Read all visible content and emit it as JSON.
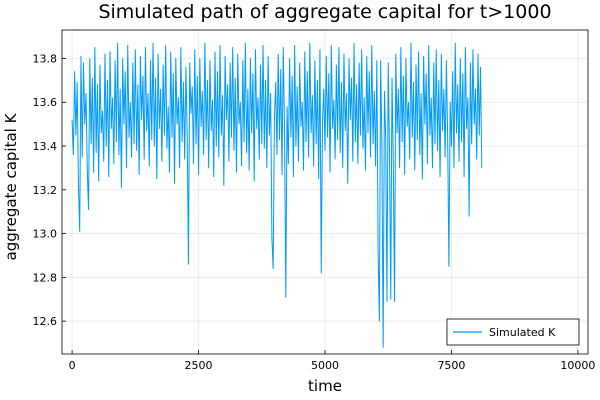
{
  "chart_data": {
    "type": "line",
    "title": "Simulated path of aggregate capital for t>1000",
    "xlabel": "time",
    "ylabel": "aggregate capital K",
    "xlim": [
      -200,
      10200
    ],
    "ylim": [
      12.45,
      13.93
    ],
    "x_ticks": [
      0,
      2500,
      5000,
      7500,
      10000
    ],
    "y_ticks": [
      12.6,
      12.8,
      13.0,
      13.2,
      13.4,
      13.6,
      13.8
    ],
    "grid": true,
    "legend_position": "bottom-right",
    "series": [
      {
        "name": "Simulated K",
        "color": "#009af9",
        "x_start": 0,
        "x_step": 25,
        "values": [
          13.52,
          13.36,
          13.74,
          13.45,
          13.69,
          13.22,
          13.01,
          13.81,
          13.35,
          13.78,
          13.5,
          13.64,
          13.29,
          13.11,
          13.8,
          13.41,
          13.71,
          13.28,
          13.85,
          13.37,
          13.68,
          13.24,
          13.77,
          13.46,
          13.56,
          13.33,
          13.82,
          13.4,
          13.7,
          13.26,
          13.83,
          13.48,
          13.62,
          13.32,
          13.79,
          13.42,
          13.87,
          13.36,
          13.66,
          13.21,
          13.8,
          13.5,
          13.74,
          13.3,
          13.86,
          13.44,
          13.6,
          13.35,
          13.78,
          13.41,
          13.84,
          13.38,
          13.68,
          13.27,
          13.81,
          13.52,
          13.72,
          13.34,
          13.85,
          13.47,
          13.64,
          13.31,
          13.79,
          13.43,
          13.87,
          13.4,
          13.71,
          13.25,
          13.82,
          13.48,
          13.66,
          13.33,
          13.77,
          13.45,
          13.86,
          13.39,
          13.58,
          13.28,
          13.83,
          13.44,
          13.73,
          13.23,
          13.8,
          13.5,
          13.62,
          13.3,
          13.85,
          13.42,
          13.69,
          13.34,
          13.76,
          13.46,
          12.86,
          13.78,
          13.55,
          13.67,
          13.32,
          13.84,
          13.41,
          13.72,
          13.27,
          13.8,
          13.49,
          13.65,
          13.36,
          13.87,
          13.43,
          13.7,
          13.3,
          13.79,
          13.47,
          13.61,
          13.26,
          13.83,
          13.4,
          13.74,
          13.35,
          13.86,
          13.45,
          13.63,
          13.22,
          13.81,
          13.52,
          13.68,
          13.33,
          13.78,
          13.44,
          13.85,
          13.38,
          13.71,
          13.28,
          13.82,
          13.5,
          13.6,
          13.31,
          13.79,
          13.42,
          13.87,
          13.37,
          13.66,
          13.29,
          13.8,
          13.46,
          13.73,
          13.24,
          13.84,
          13.48,
          13.62,
          13.34,
          13.77,
          13.41,
          13.86,
          13.39,
          13.7,
          13.3,
          13.81,
          13.45,
          13.64,
          12.98,
          12.84,
          13.52,
          13.69,
          13.36,
          13.82,
          13.43,
          13.75,
          13.27,
          13.85,
          13.47,
          12.71,
          13.58,
          13.32,
          13.8,
          13.44,
          13.72,
          13.26,
          13.86,
          13.4,
          13.67,
          13.33,
          13.78,
          13.49,
          13.6,
          13.29,
          13.83,
          13.42,
          13.74,
          13.35,
          13.87,
          13.46,
          13.63,
          13.31,
          13.79,
          13.41,
          13.7,
          13.25,
          13.84,
          12.82,
          13.5,
          13.66,
          13.38,
          13.81,
          13.44,
          13.73,
          13.28,
          13.86,
          13.48,
          13.61,
          13.34,
          13.77,
          13.43,
          13.85,
          13.37,
          13.69,
          13.3,
          13.82,
          13.47,
          13.64,
          13.23,
          13.8,
          13.52,
          13.71,
          13.33,
          13.87,
          13.42,
          13.68,
          13.32,
          13.78,
          13.45,
          13.84,
          13.39,
          13.62,
          13.29,
          13.81,
          13.46,
          13.74,
          13.35,
          13.86,
          13.41,
          13.65,
          13.31,
          13.79,
          12.92,
          12.6,
          13.79,
          13.4,
          12.48,
          13.65,
          13.44,
          12.69,
          13.78,
          13.36,
          12.7,
          13.71,
          13.33,
          12.69,
          13.82,
          13.46,
          13.66,
          13.3,
          13.85,
          13.42,
          13.72,
          13.27,
          13.8,
          13.49,
          13.6,
          13.34,
          13.87,
          13.44,
          13.69,
          13.29,
          13.77,
          13.43,
          13.83,
          13.36,
          13.64,
          13.25,
          13.81,
          13.5,
          13.73,
          13.32,
          13.86,
          13.45,
          13.62,
          13.3,
          13.78,
          13.41,
          13.84,
          13.38,
          13.7,
          13.26,
          13.82,
          13.47,
          13.66,
          13.35,
          13.79,
          13.44,
          12.85,
          13.6,
          13.4,
          13.74,
          13.3,
          13.87,
          13.46,
          13.68,
          13.33,
          13.8,
          13.42,
          13.73,
          13.26,
          13.85,
          13.48,
          13.62,
          13.08,
          13.78,
          13.41,
          13.84,
          13.5,
          13.66,
          13.34,
          13.82,
          13.45,
          13.76,
          13.3
        ]
      }
    ]
  }
}
